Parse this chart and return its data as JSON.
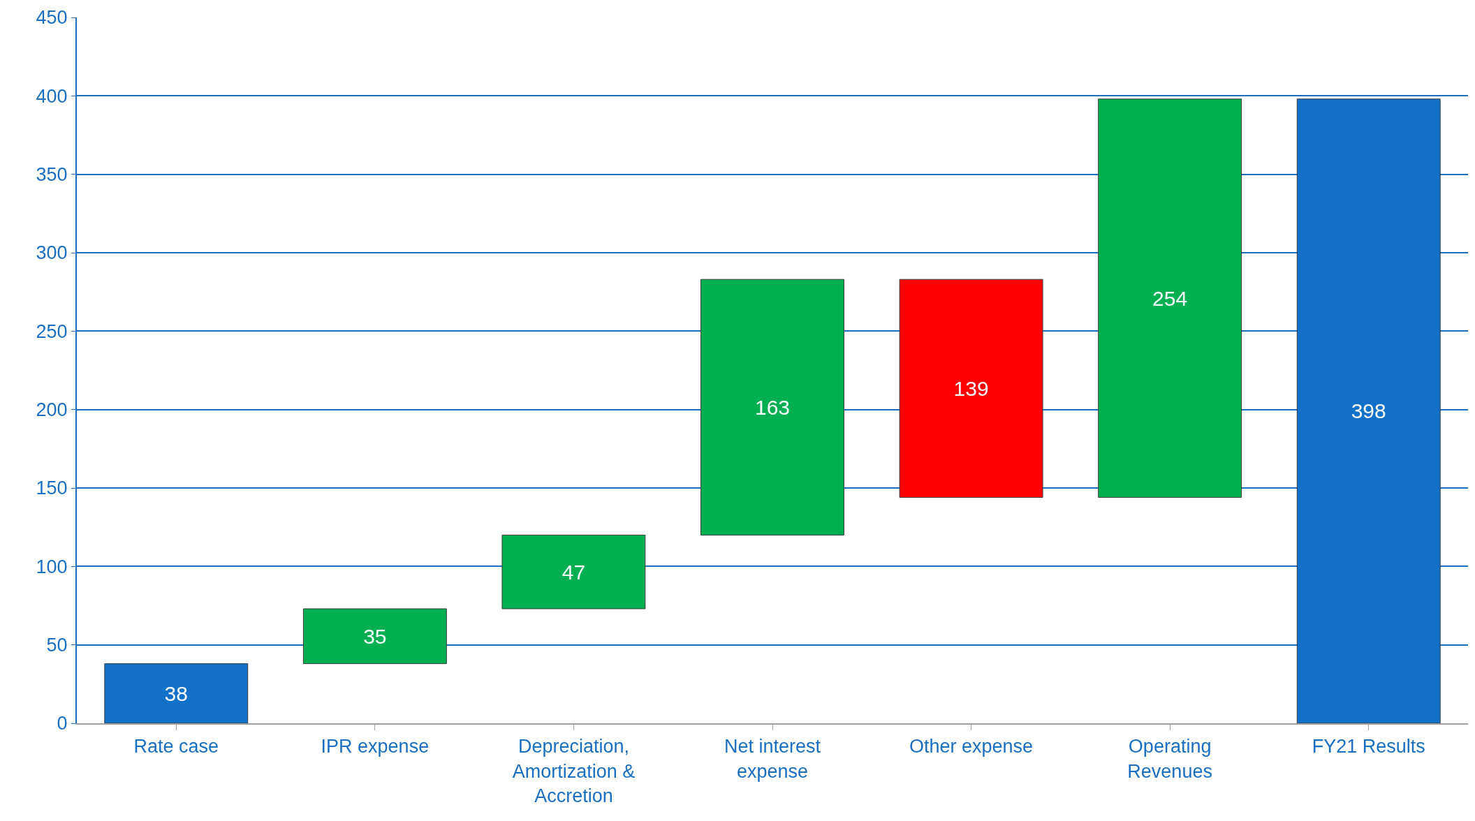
{
  "chart_data": {
    "type": "bar",
    "categories": [
      "Rate case",
      "IPR expense",
      "Depreciation, Amortization & Accretion",
      "Net interest expense",
      "Other expense",
      "Operating Revenues",
      "FY21 Results"
    ],
    "values": [
      38,
      35,
      47,
      163,
      139,
      254,
      398
    ],
    "base": [
      0,
      38,
      73,
      120,
      144,
      144,
      0
    ],
    "colors": [
      "#1170c8",
      "#00b050",
      "#00b050",
      "#00b050",
      "#ff0000",
      "#00b050",
      "#1170c8"
    ],
    "ylim": [
      0,
      450
    ],
    "yticks": [
      0,
      50,
      100,
      150,
      200,
      250,
      300,
      350,
      400,
      450
    ],
    "grid": "y",
    "data_labels": true,
    "legend": false
  }
}
